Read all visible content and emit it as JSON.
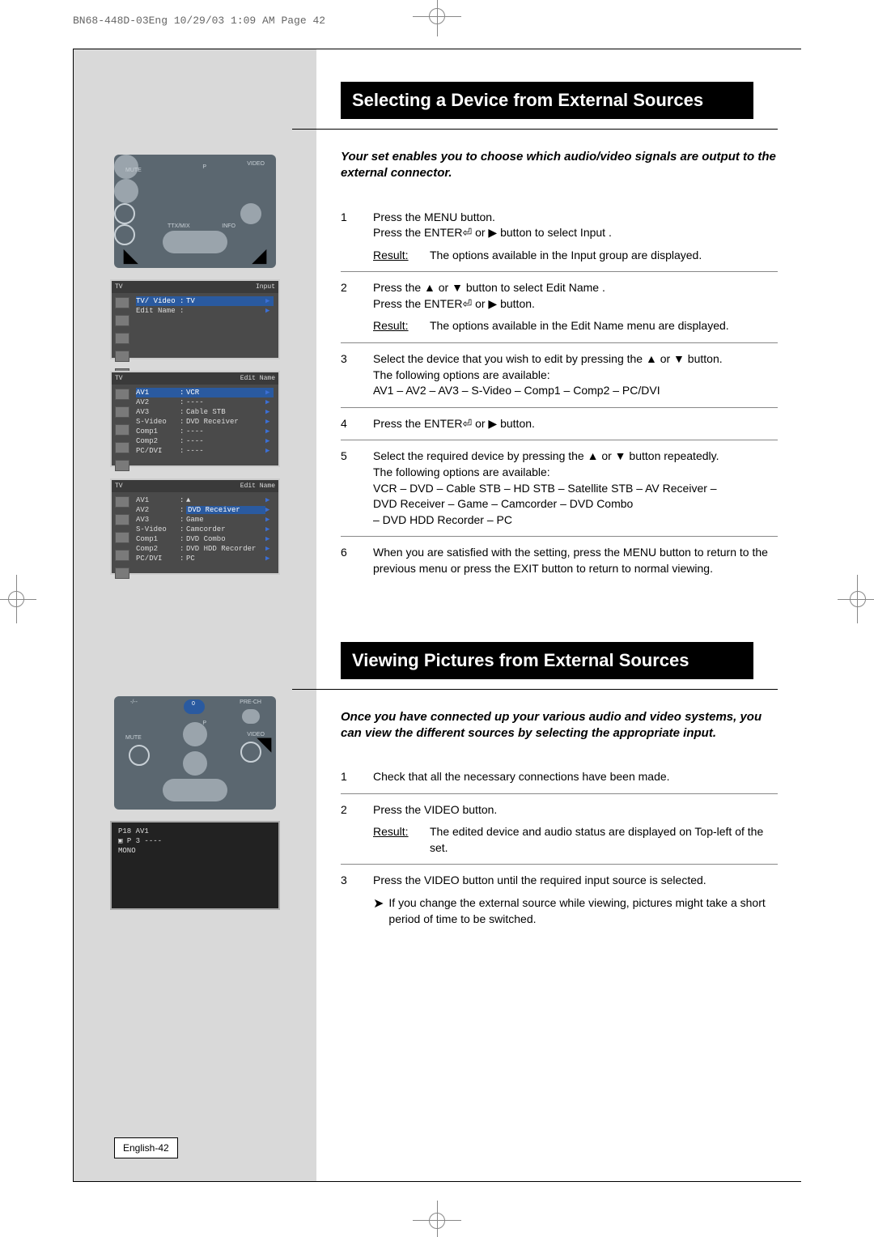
{
  "header": "BN68-448D-03Eng  10/29/03 1:09 AM  Page 42",
  "section1": {
    "title": "Selecting a Device from External Sources",
    "intro": "Your set enables you to choose which audio/video signals are output to the external connector.",
    "steps": [
      {
        "num": "1",
        "lines": [
          "Press the MENU button.",
          "Press the ENTER⏎ or ▶ button to select Input ."
        ],
        "result": "The options available in the Input   group are displayed."
      },
      {
        "num": "2",
        "lines": [
          "Press the ▲ or ▼ button to select Edit Name .",
          "Press the ENTER⏎ or ▶ button."
        ],
        "result": "The options available in the Edit Name  menu are displayed."
      },
      {
        "num": "3",
        "lines": [
          "Select the device that you wish to edit by pressing the ▲ or ▼ button.",
          "The following options are available:",
          "AV1 – AV2 – AV3 – S-Video  – Comp1 – Comp2 – PC/DVI"
        ]
      },
      {
        "num": "4",
        "lines": [
          "Press the ENTER⏎ or ▶ button."
        ]
      },
      {
        "num": "5",
        "lines": [
          "Select the required device by pressing the ▲ or ▼ button repeatedly.",
          "The following options are available:",
          "VCR – DVD – Cable STB  – HD STB – Satellite STB      – AV Receiver    –",
          "DVD Receiver  – Game – Camcorder  – DVD Combo",
          "– DVD HDD Recorder – PC"
        ]
      },
      {
        "num": "6",
        "lines": [
          "When you are satisfied with the setting, press the MENU button to return to the previous menu or press the EXIT button to return to normal viewing."
        ]
      }
    ]
  },
  "section2": {
    "title": "Viewing Pictures from External Sources",
    "intro": "Once you have connected up your various audio and video systems, you can view the different sources by selecting the appropriate input.",
    "steps": [
      {
        "num": "1",
        "lines": [
          "Check that all the necessary connections have been made."
        ]
      },
      {
        "num": "2",
        "lines": [
          "Press the VIDEO button."
        ],
        "result": "The edited device and audio status are displayed on Top-left of the set."
      },
      {
        "num": "3",
        "lines": [
          "Press the VIDEO button until the required input source is selected."
        ],
        "note": "If you change the external source while viewing, pictures might take a short period of time to be switched."
      }
    ]
  },
  "osd1": {
    "titleL": "TV",
    "titleR": "Input",
    "rows": [
      {
        "c1": "TV/ Video",
        "c3": "TV",
        "sel": true
      },
      {
        "c1": "Edit Name",
        "c3": "",
        "sel": false
      }
    ]
  },
  "osd2": {
    "titleL": "TV",
    "titleR": "Edit Name",
    "rows": [
      {
        "c1": "AV1",
        "c3": "VCR",
        "sel": true
      },
      {
        "c1": "AV2",
        "c3": "----"
      },
      {
        "c1": "AV3",
        "c3": "Cable STB"
      },
      {
        "c1": "S-Video",
        "c3": "DVD Receiver"
      },
      {
        "c1": "Comp1",
        "c3": "----"
      },
      {
        "c1": "Comp2",
        "c3": "----"
      },
      {
        "c1": "PC/DVI",
        "c3": "----"
      }
    ]
  },
  "osd3": {
    "titleL": "TV",
    "titleR": "Edit Name",
    "rows": [
      {
        "c1": "AV1",
        "c3": "▲"
      },
      {
        "c1": "AV2",
        "c3": "DVD Receiver",
        "hilite": true
      },
      {
        "c1": "AV3",
        "c3": "Game"
      },
      {
        "c1": "S-Video",
        "c3": "Camcorder"
      },
      {
        "c1": "Comp1",
        "c3": "DVD Combo"
      },
      {
        "c1": "Comp2",
        "c3": "DVD HDD Recorder"
      },
      {
        "c1": "PC/DVI",
        "c3": "PC"
      }
    ]
  },
  "remote": {
    "labels": {
      "mute": "MUTE",
      "video": "VIDEO",
      "p": "P",
      "ttx": "TTX/MIX",
      "info": "INFO",
      "prech": "PRE-CH"
    }
  },
  "blackbox": {
    "l1": "P18 AV1",
    "l2": "▣ P 3 ----",
    "l3": "MONO"
  },
  "pageNum": "English-42",
  "colors": {
    "leftColBg": "#d9d9d9",
    "titleBg": "#000000",
    "osdBg": "#4a4a4a",
    "osdSel": "#2a5aa0",
    "remoteBg": "#5b6770"
  }
}
